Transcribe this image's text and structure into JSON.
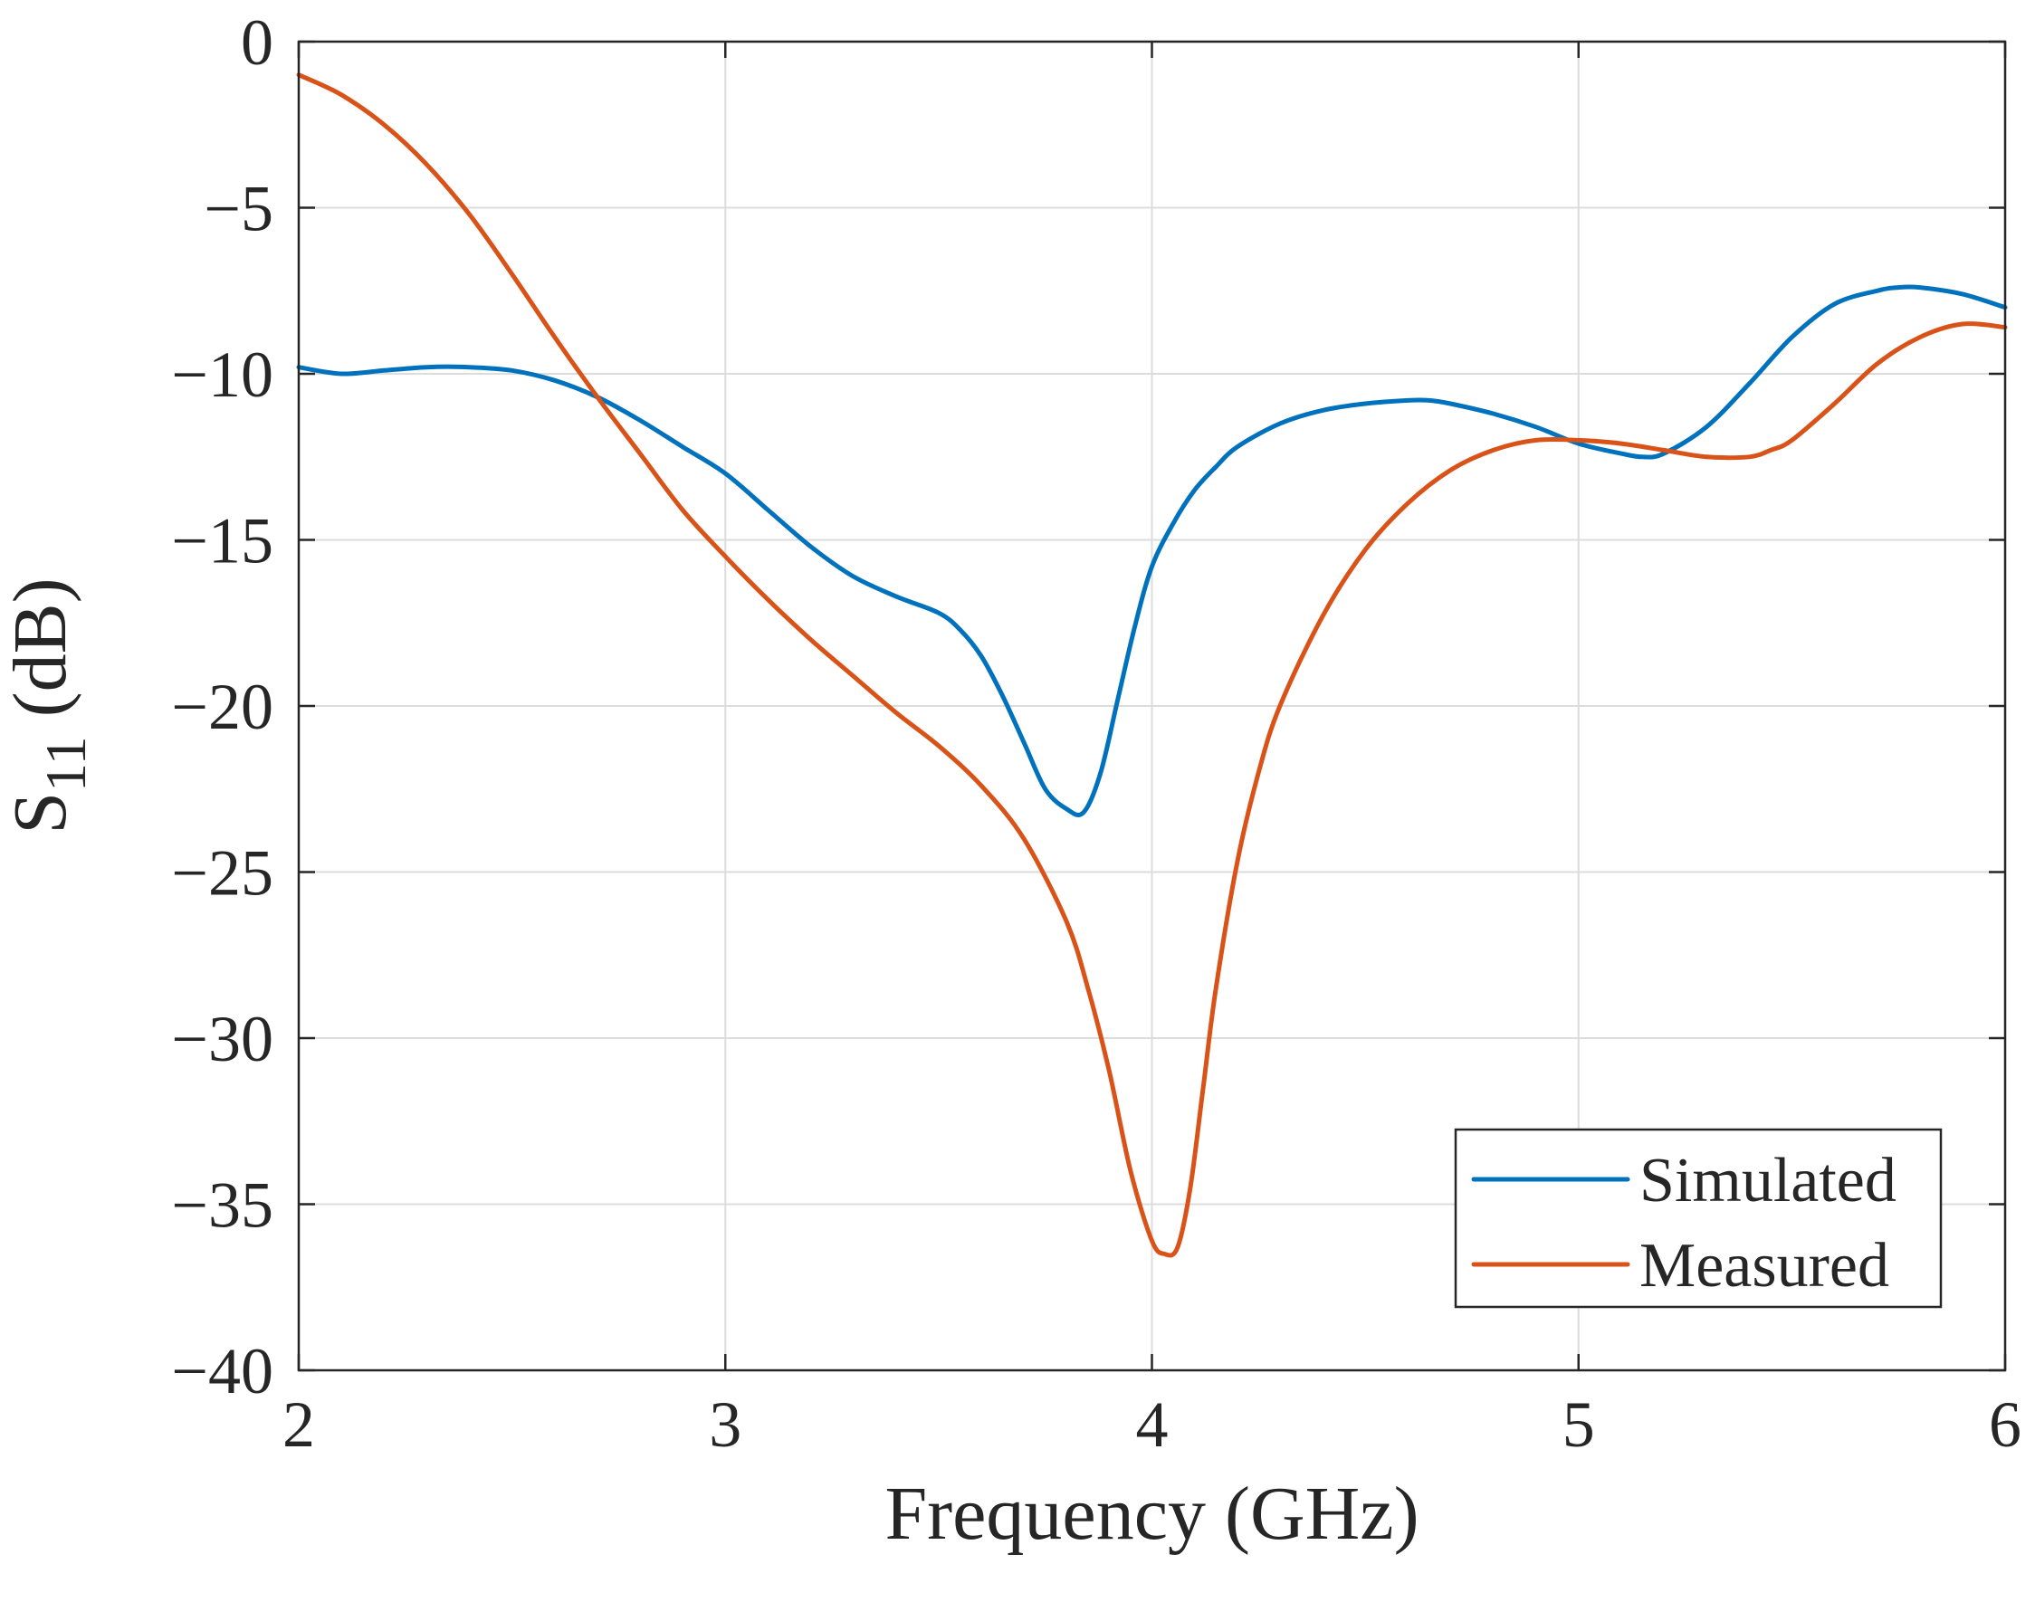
{
  "chart_data": {
    "type": "line",
    "title": "",
    "xlabel": "Frequency (GHz)",
    "ylabel": {
      "main": "S",
      "subscript": "11",
      "unit": " (dB)"
    },
    "xlim": [
      2,
      6
    ],
    "ylim": [
      -40,
      0
    ],
    "xticks": [
      2,
      3,
      4,
      5,
      6
    ],
    "xtick_labels": [
      "2",
      "3",
      "4",
      "5",
      "6"
    ],
    "yticks": [
      0,
      -5,
      -10,
      -15,
      -20,
      -25,
      -30,
      -35,
      -40
    ],
    "ytick_labels": [
      "0",
      "−5",
      "−10",
      "−15",
      "−20",
      "−25",
      "−30",
      "−35",
      "−40"
    ],
    "grid": true,
    "legend_position": "bottom-right",
    "series": [
      {
        "name": "Simulated",
        "color": "#0072BD",
        "x": [
          2.0,
          2.1,
          2.2,
          2.3,
          2.4,
          2.5,
          2.6,
          2.7,
          2.8,
          2.9,
          3.0,
          3.1,
          3.2,
          3.3,
          3.4,
          3.5,
          3.55,
          3.6,
          3.65,
          3.7,
          3.75,
          3.8,
          3.84,
          3.88,
          3.92,
          3.96,
          4.0,
          4.05,
          4.1,
          4.15,
          4.2,
          4.3,
          4.4,
          4.5,
          4.6,
          4.65,
          4.7,
          4.8,
          4.9,
          5.0,
          5.1,
          5.15,
          5.2,
          5.3,
          5.4,
          5.5,
          5.6,
          5.7,
          5.75,
          5.8,
          5.9,
          6.0
        ],
        "y": [
          -9.8,
          -10.0,
          -9.9,
          -9.8,
          -9.8,
          -9.9,
          -10.2,
          -10.7,
          -11.4,
          -12.2,
          -13.0,
          -14.1,
          -15.2,
          -16.1,
          -16.7,
          -17.2,
          -17.7,
          -18.5,
          -19.7,
          -21.1,
          -22.5,
          -23.1,
          -23.2,
          -22.0,
          -19.8,
          -17.6,
          -15.8,
          -14.5,
          -13.5,
          -12.8,
          -12.2,
          -11.5,
          -11.1,
          -10.9,
          -10.8,
          -10.8,
          -10.9,
          -11.2,
          -11.6,
          -12.1,
          -12.4,
          -12.5,
          -12.4,
          -11.6,
          -10.3,
          -8.9,
          -7.9,
          -7.5,
          -7.4,
          -7.4,
          -7.6,
          -8.0
        ]
      },
      {
        "name": "Measured",
        "color": "#D95319",
        "x": [
          2.0,
          2.1,
          2.2,
          2.3,
          2.4,
          2.5,
          2.6,
          2.7,
          2.8,
          2.9,
          3.0,
          3.1,
          3.2,
          3.3,
          3.4,
          3.5,
          3.6,
          3.7,
          3.8,
          3.85,
          3.9,
          3.95,
          4.0,
          4.03,
          4.06,
          4.09,
          4.12,
          4.15,
          4.2,
          4.25,
          4.3,
          4.4,
          4.5,
          4.6,
          4.7,
          4.8,
          4.9,
          5.0,
          5.1,
          5.2,
          5.3,
          5.4,
          5.45,
          5.5,
          5.6,
          5.7,
          5.8,
          5.9,
          6.0
        ],
        "y": [
          -1.0,
          -1.6,
          -2.5,
          -3.7,
          -5.2,
          -7.0,
          -8.9,
          -10.7,
          -12.4,
          -14.1,
          -15.5,
          -16.8,
          -18.0,
          -19.1,
          -20.2,
          -21.2,
          -22.4,
          -24.0,
          -26.5,
          -28.5,
          -31.0,
          -34.0,
          -36.1,
          -36.5,
          -36.3,
          -34.5,
          -31.5,
          -28.5,
          -24.7,
          -22.0,
          -20.0,
          -17.3,
          -15.3,
          -13.9,
          -12.9,
          -12.3,
          -12.0,
          -12.0,
          -12.1,
          -12.3,
          -12.5,
          -12.5,
          -12.3,
          -12.0,
          -10.9,
          -9.7,
          -8.9,
          -8.5,
          -8.6
        ]
      }
    ]
  }
}
